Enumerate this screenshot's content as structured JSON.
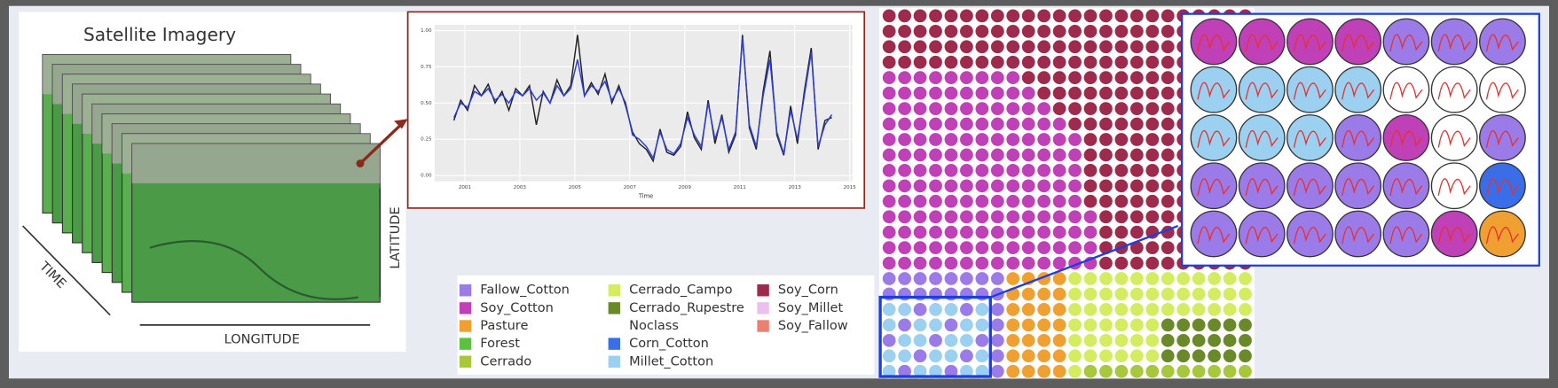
{
  "satellite": {
    "title": "Satellite Imagery",
    "time": "TIME",
    "longitude": "LONGITUDE",
    "latitude": "LATITUDE"
  },
  "chart_data": {
    "type": "line",
    "x_label": "Time",
    "x": [
      2000.6,
      2000.85,
      2001.1,
      2001.35,
      2001.6,
      2001.85,
      2002.1,
      2002.35,
      2002.6,
      2002.85,
      2003.1,
      2003.35,
      2003.6,
      2003.85,
      2004.1,
      2004.35,
      2004.6,
      2004.85,
      2005.1,
      2005.35,
      2005.6,
      2005.85,
      2006.1,
      2006.35,
      2006.6,
      2006.85,
      2007.1,
      2007.35,
      2007.6,
      2007.85,
      2008.1,
      2008.35,
      2008.6,
      2008.85,
      2009.1,
      2009.35,
      2009.6,
      2009.85,
      2010.1,
      2010.35,
      2010.6,
      2010.85,
      2011.1,
      2011.35,
      2011.6,
      2011.85,
      2012.1,
      2012.35,
      2012.6,
      2012.85,
      2013.1,
      2013.35,
      2013.6,
      2013.85,
      2014.1,
      2014.35
    ],
    "series": [
      {
        "color": "#222222",
        "values": [
          0.38,
          0.52,
          0.45,
          0.62,
          0.55,
          0.63,
          0.5,
          0.58,
          0.45,
          0.6,
          0.55,
          0.62,
          0.35,
          0.58,
          0.5,
          0.66,
          0.55,
          0.62,
          0.97,
          0.55,
          0.64,
          0.56,
          0.7,
          0.5,
          0.62,
          0.48,
          0.3,
          0.22,
          0.18,
          0.1,
          0.32,
          0.16,
          0.14,
          0.2,
          0.44,
          0.26,
          0.18,
          0.52,
          0.22,
          0.42,
          0.16,
          0.28,
          0.97,
          0.33,
          0.18,
          0.58,
          0.86,
          0.28,
          0.14,
          0.48,
          0.22,
          0.58,
          0.88,
          0.18,
          0.38,
          0.4
        ]
      },
      {
        "color": "#2b3be0",
        "values": [
          0.4,
          0.5,
          0.47,
          0.58,
          0.55,
          0.6,
          0.52,
          0.56,
          0.5,
          0.58,
          0.55,
          0.6,
          0.52,
          0.57,
          0.5,
          0.62,
          0.55,
          0.6,
          0.8,
          0.55,
          0.62,
          0.58,
          0.65,
          0.52,
          0.6,
          0.5,
          0.28,
          0.25,
          0.2,
          0.12,
          0.3,
          0.18,
          0.15,
          0.22,
          0.4,
          0.28,
          0.2,
          0.5,
          0.25,
          0.4,
          0.18,
          0.3,
          0.95,
          0.35,
          0.2,
          0.55,
          0.8,
          0.3,
          0.15,
          0.45,
          0.25,
          0.55,
          0.85,
          0.2,
          0.35,
          0.42
        ]
      }
    ],
    "xlim": [
      1999.9,
      2015.1
    ],
    "xticks": [
      2001,
      2003,
      2005,
      2007,
      2009,
      2011,
      2013,
      2015
    ],
    "ylim": [
      -0.04,
      1.04
    ],
    "yticks": [
      {
        "value": 0,
        "label": "0.00"
      },
      {
        "value": 0.25,
        "label": "0.25"
      },
      {
        "value": 0.5,
        "label": "0.50"
      },
      {
        "value": 0.75,
        "label": "0.75"
      },
      {
        "value": 1,
        "label": "1.00"
      }
    ],
    "grid": true
  },
  "legend": {
    "items": [
      {
        "label": "Fallow_Cotton",
        "color": "#9b7be8"
      },
      {
        "label": "Soy_Cotton",
        "color": "#c040b8"
      },
      {
        "label": "Pasture",
        "color": "#f0a030"
      },
      {
        "label": "Forest",
        "color": "#5cc040"
      },
      {
        "label": "Cerrado",
        "color": "#a8c83c"
      },
      {
        "label": "Cerrado_Campo",
        "color": "#d4ec60"
      },
      {
        "label": "Cerrado_Rupestre",
        "color": "#6a8a2a"
      },
      {
        "label": "Noclass"
      },
      {
        "label": "Corn_Cotton",
        "color": "#3a6ee8"
      },
      {
        "label": "Millet_Cotton",
        "color": "#9cd0f0"
      },
      {
        "label": "Soy_Corn",
        "color": "#9e2a4e"
      },
      {
        "label": "Soy_Millet",
        "color": "#ecc0ec"
      },
      {
        "label": "Soy_Fallow",
        "color": "#ec8070"
      }
    ]
  }
}
